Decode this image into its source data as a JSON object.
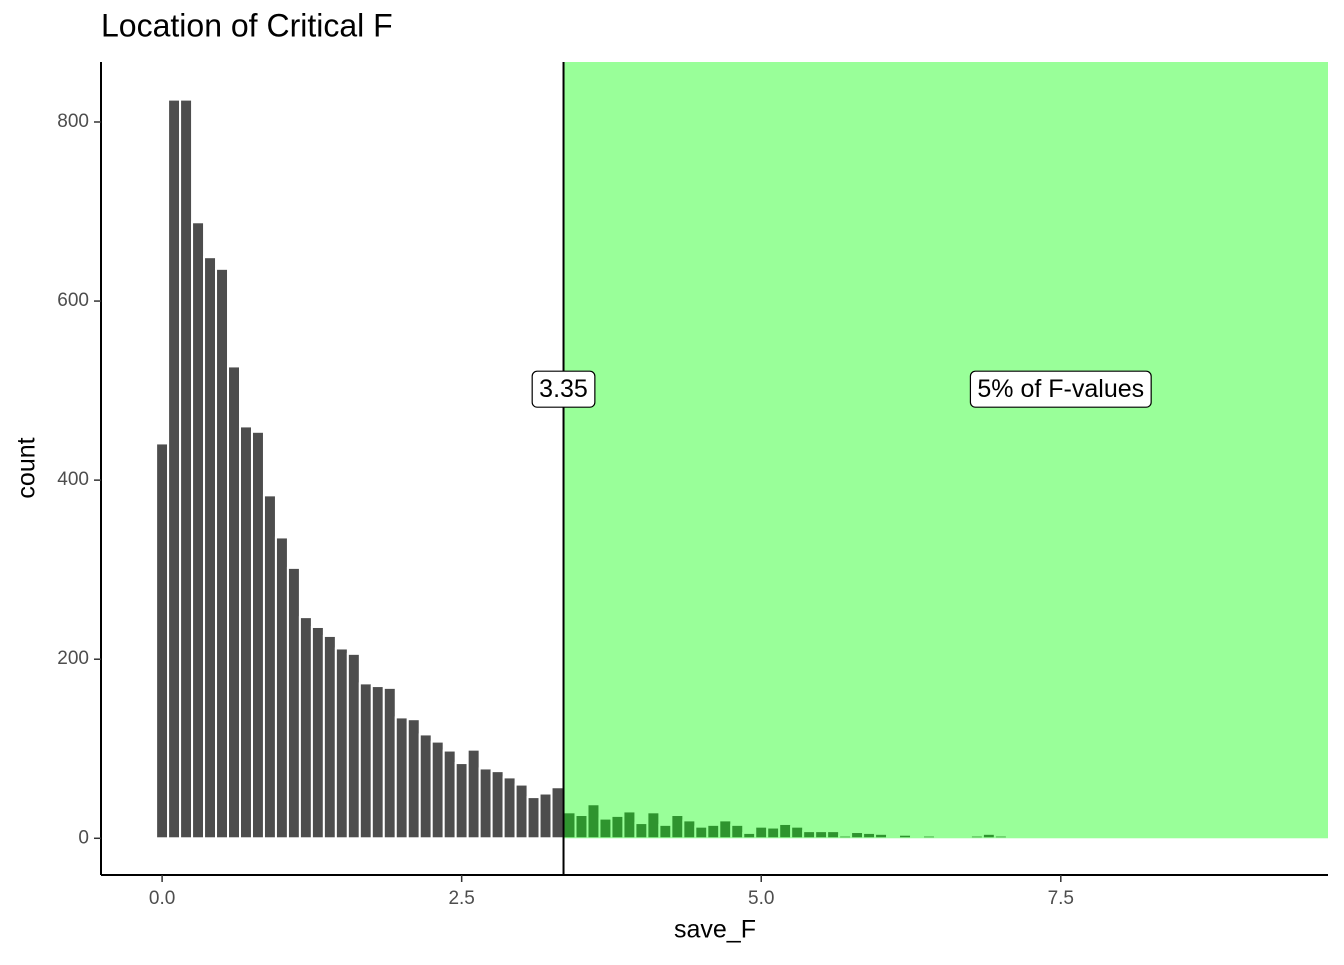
{
  "chart_data": {
    "type": "histogram",
    "title": "Location of Critical F",
    "x_label": "save_F",
    "y_label": "count",
    "bins": [
      -0.05,
      0.05,
      0.15,
      0.25,
      0.35,
      0.45,
      0.55,
      0.65,
      0.75,
      0.85,
      0.95,
      1.05,
      1.15,
      1.25,
      1.35,
      1.45,
      1.55,
      1.65,
      1.75,
      1.85,
      1.95,
      2.05,
      2.15,
      2.25,
      2.35,
      2.45,
      2.55,
      2.65,
      2.75,
      2.85,
      2.95,
      3.05,
      3.15,
      3.25,
      3.35,
      3.45,
      3.55,
      3.65,
      3.75,
      3.85,
      3.95,
      4.05,
      4.15,
      4.25,
      4.35,
      4.45,
      4.55,
      4.65,
      4.75,
      4.85,
      4.95,
      5.05,
      5.15,
      5.25,
      5.35,
      5.45,
      5.55,
      5.65,
      5.75,
      5.85,
      5.95,
      6.05,
      6.15,
      6.25,
      6.35,
      6.45,
      6.55,
      6.65,
      6.75,
      6.85,
      6.95,
      7.05
    ],
    "values": [
      441,
      825,
      825,
      688,
      649,
      636,
      527,
      460,
      454,
      383,
      336,
      302,
      247,
      236,
      226,
      212,
      206,
      173,
      170,
      168,
      135,
      133,
      116,
      108,
      98,
      84,
      99,
      78,
      75,
      68,
      60,
      46,
      50,
      57,
      29,
      26,
      38,
      22,
      25,
      30,
      17,
      29,
      15,
      26,
      20,
      13,
      15,
      20,
      15,
      6,
      13,
      12,
      16,
      13,
      8,
      8,
      8,
      3,
      7,
      6,
      5,
      2,
      4,
      0,
      3,
      0,
      2,
      0,
      3,
      5,
      3
    ],
    "color": "#4d4d4d",
    "critical_value": 3.35,
    "region_color": "#00ff00",
    "annotation": {
      "text": "5% of F-values",
      "x": 7.5,
      "y": 500
    },
    "label_y": 500,
    "xlim": [
      -0.51,
      9.73
    ],
    "xticks": [
      {
        "value": 0,
        "label": "0.0"
      },
      2.5,
      {
        "value": 5,
        "label": "5.0"
      },
      7.5
    ],
    "ylim": [
      -41,
      867
    ],
    "yticks": [
      0,
      200,
      400,
      600,
      800
    ]
  }
}
